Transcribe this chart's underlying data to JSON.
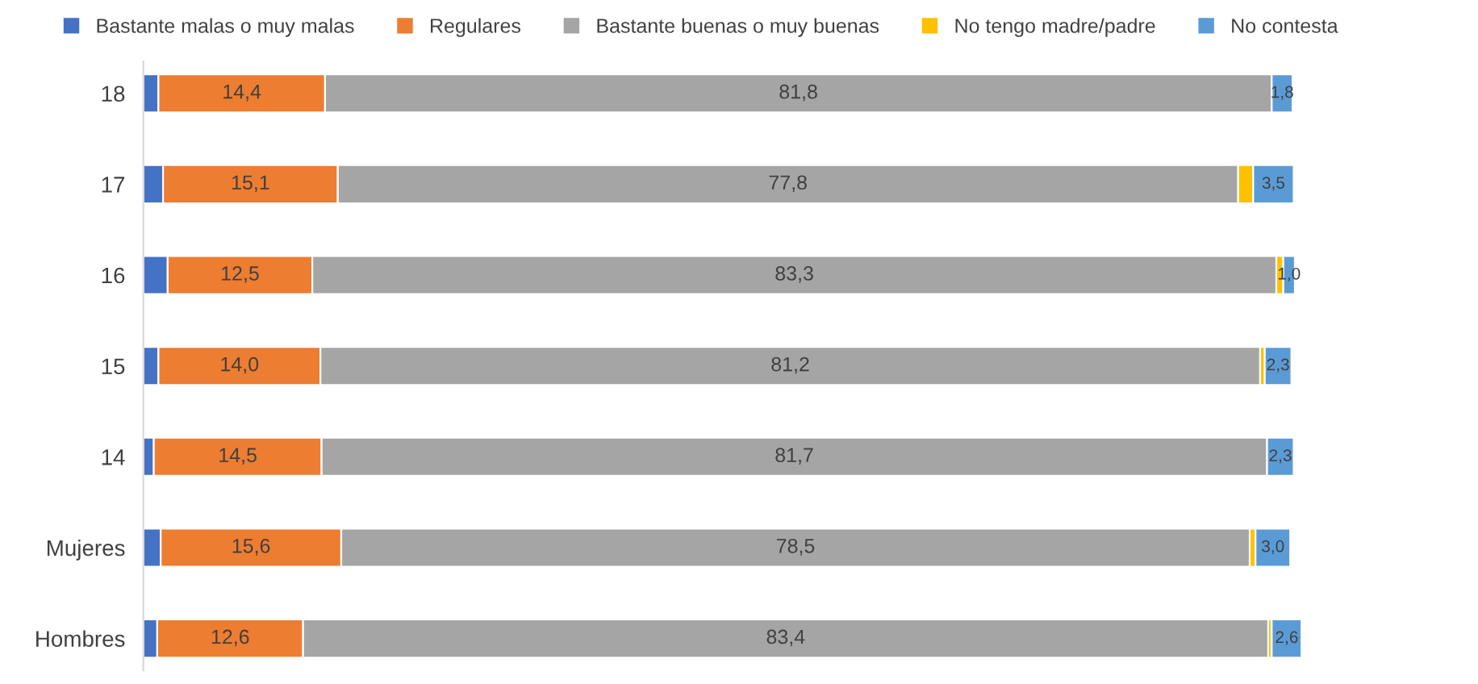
{
  "chart_data": {
    "type": "bar",
    "orientation": "horizontal",
    "stacked": true,
    "categories": [
      "18",
      "17",
      "16",
      "15",
      "14",
      "Mujeres",
      "Hombres"
    ],
    "xlim": [
      0,
      100
    ],
    "tick_labels": "y",
    "legend": "top",
    "marker": "square",
    "grid": false,
    "series": [
      {
        "name": "Bastante malas o muy malas",
        "color": "#4472c4",
        "values": [
          1.3,
          1.7,
          2.1,
          1.3,
          0.9,
          1.5,
          1.2
        ],
        "value_labels": [
          null,
          null,
          null,
          null,
          null,
          null,
          null
        ]
      },
      {
        "name": "Regulares",
        "color": "#ed7d31",
        "values": [
          14.4,
          15.1,
          12.5,
          14.0,
          14.5,
          15.6,
          12.6
        ],
        "value_labels": [
          "14,4",
          "15,1",
          "12,5",
          "14,0",
          "14,5",
          "15,6",
          "12,6"
        ]
      },
      {
        "name": "Bastante buenas o muy buenas",
        "color": "#a5a5a5",
        "values": [
          81.8,
          77.8,
          83.3,
          81.2,
          81.7,
          78.5,
          83.4
        ],
        "value_labels": [
          "81,8",
          "77,8",
          "83,3",
          "81,2",
          "81,7",
          "78,5",
          "83,4"
        ]
      },
      {
        "name": "No tengo madre/padre",
        "color": "#ffc000",
        "values": [
          null,
          1.3,
          0.6,
          0.4,
          null,
          0.5,
          0.3
        ],
        "value_labels": [
          null,
          null,
          null,
          null,
          null,
          null,
          null
        ]
      },
      {
        "name": "No contesta",
        "color": "#5b9bd5",
        "values": [
          1.8,
          3.5,
          1.0,
          2.3,
          2.3,
          3.0,
          2.6
        ],
        "value_labels": [
          "1,8",
          "3,5",
          "1,0",
          "2,3",
          "2,3",
          "3,0",
          "2,6"
        ]
      }
    ]
  }
}
